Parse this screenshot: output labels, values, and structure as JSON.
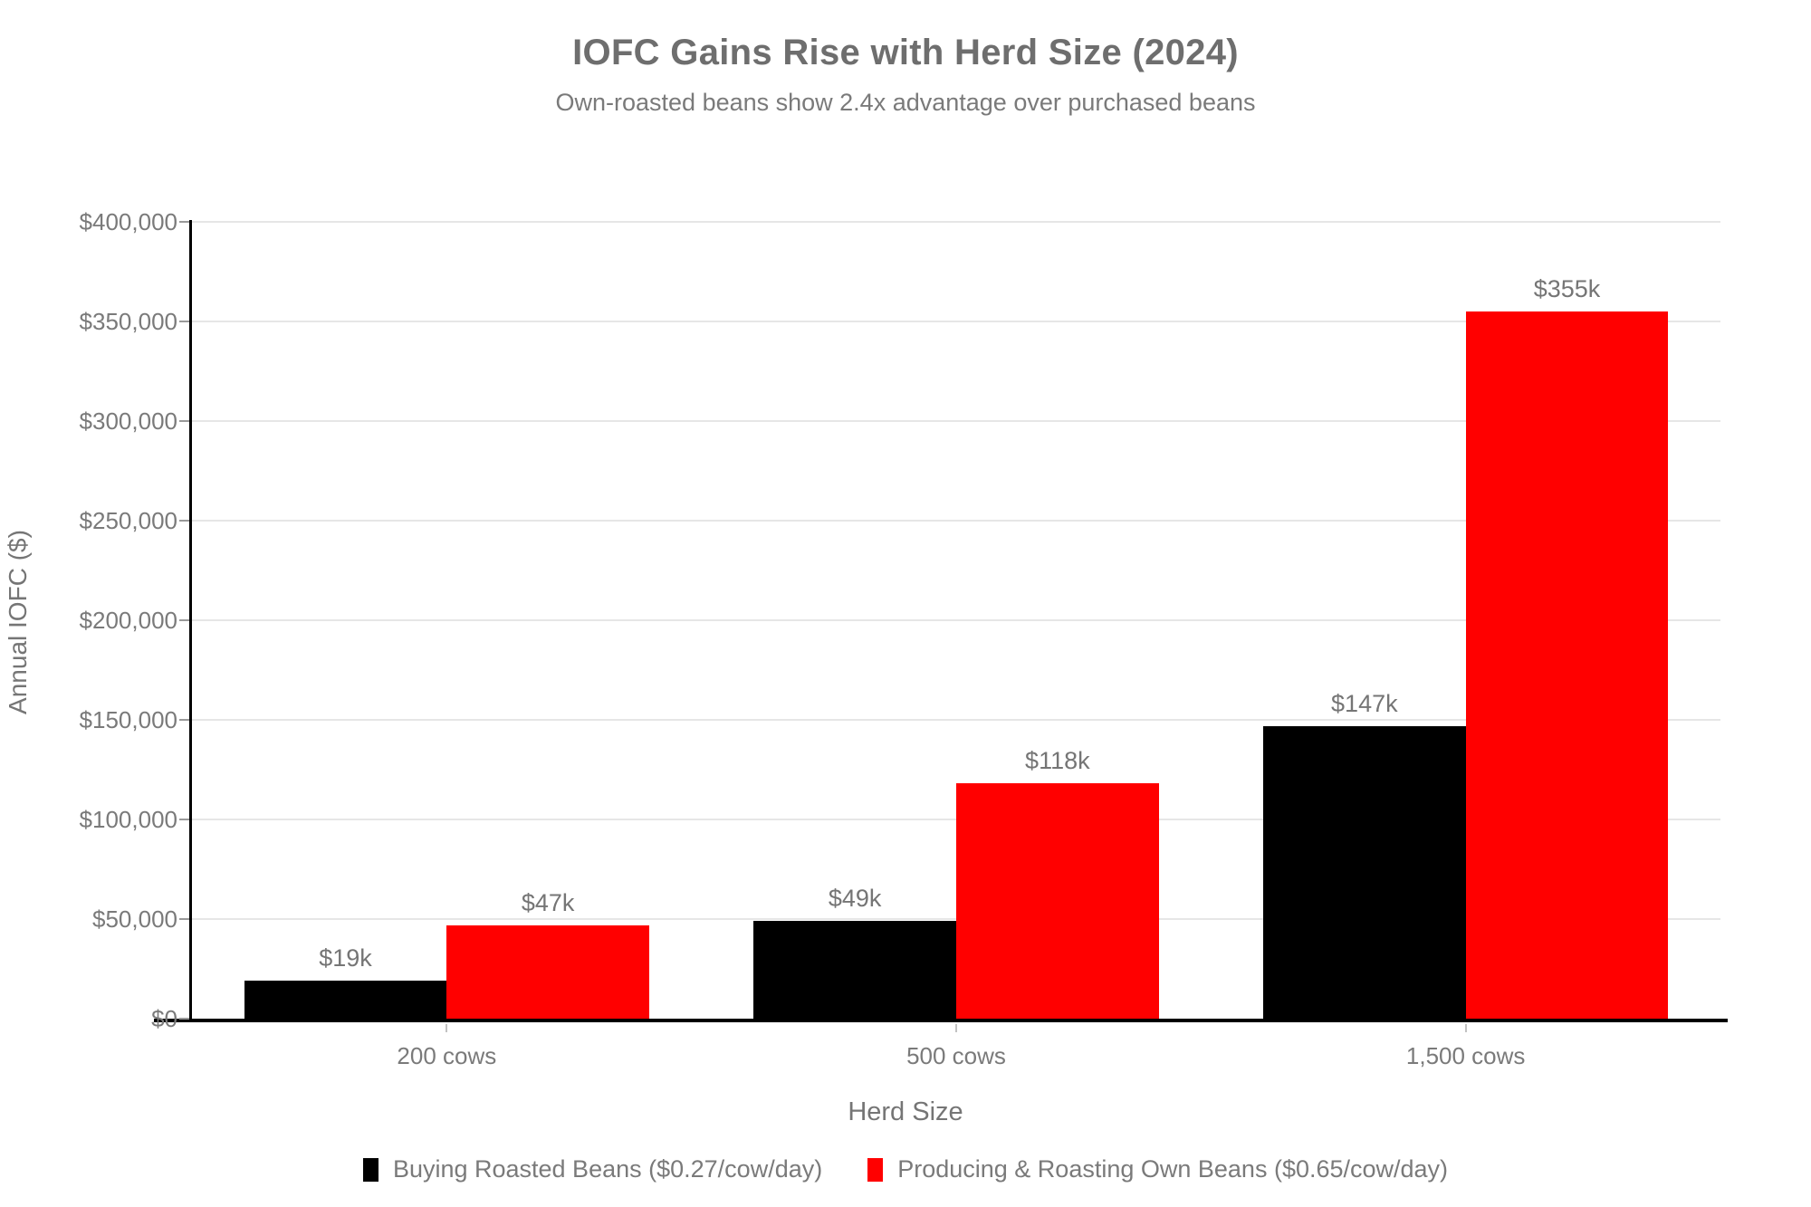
{
  "chart_data": {
    "type": "bar",
    "title": "IOFC Gains Rise with Herd Size (2024)",
    "subtitle": "Own-roasted beans show 2.4x advantage over purchased beans",
    "xlabel": "Herd Size",
    "ylabel": "Annual IOFC ($)",
    "categories": [
      "200 cows",
      "500 cows",
      "1,500 cows"
    ],
    "series": [
      {
        "name": "Buying Roasted Beans ($0.27/cow/day)",
        "color": "#000000",
        "values": [
          19000,
          49000,
          147000
        ],
        "value_labels": [
          "$19k",
          "$49k",
          "$147k"
        ]
      },
      {
        "name": "Producing & Roasting Own Beans ($0.65/cow/day)",
        "color": "#ff0000",
        "values": [
          47000,
          118000,
          355000
        ],
        "value_labels": [
          "$47k",
          "$118k",
          "$355k"
        ]
      }
    ],
    "ylim": [
      0,
      400000
    ],
    "yticks": [
      {
        "value": 0,
        "label": "$0"
      },
      {
        "value": 50000,
        "label": "$50,000"
      },
      {
        "value": 100000,
        "label": "$100,000"
      },
      {
        "value": 150000,
        "label": "$150,000"
      },
      {
        "value": 200000,
        "label": "$200,000"
      },
      {
        "value": 250000,
        "label": "$250,000"
      },
      {
        "value": 300000,
        "label": "$300,000"
      },
      {
        "value": 350000,
        "label": "$350,000"
      },
      {
        "value": 400000,
        "label": "$400,000"
      }
    ],
    "grid": "horizontal",
    "legend_position": "bottom",
    "bar_width_pct": 13.25
  },
  "colors": {
    "background": "#ffffff",
    "grid_line": "#e6e6e6",
    "axis_line": "#000000",
    "title_text": "#6e6e6e",
    "body_text": "#7a7a7a"
  }
}
